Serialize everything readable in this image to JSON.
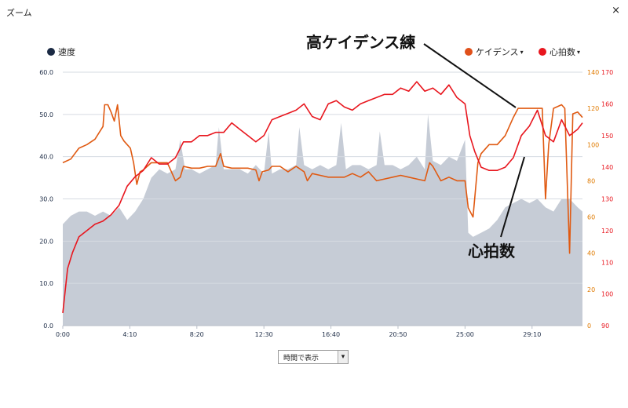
{
  "window": {
    "title": "ズーム",
    "close_symbol": "×"
  },
  "annotations": {
    "cadence_note": "高ケイデンス練",
    "hr_note": "心拍数"
  },
  "legend": {
    "speed": {
      "label": "速度",
      "color": "#1b2a44"
    },
    "cadence": {
      "label": "ケイデンス",
      "color": "#e0501a"
    },
    "heart_rate": {
      "label": "心拍数",
      "color": "#e8161e"
    }
  },
  "controls": {
    "time_select": "時間で表示"
  },
  "chart_data": {
    "type": "line",
    "x_tick_labels": [
      "0:00",
      "4:10",
      "8:20",
      "12:30",
      "16:40",
      "20:50",
      "25:00",
      "29:10"
    ],
    "x_ticks_minutes": [
      0,
      4.1667,
      8.3333,
      12.5,
      16.6667,
      20.8333,
      25,
      29.1667
    ],
    "xlim": [
      0,
      32.3
    ],
    "axes": {
      "speed": {
        "ticks": [
          "0.0",
          "10.0",
          "20.0",
          "30.0",
          "40.0",
          "50.0",
          "60.0"
        ],
        "ylim": [
          0,
          60
        ],
        "color": "#1b2a44"
      },
      "cadence": {
        "ticks": [
          "0",
          "20",
          "40",
          "60",
          "80",
          "100",
          "120",
          "140"
        ],
        "ylim": [
          0,
          140
        ],
        "color": "#e07a00"
      },
      "heart_rate": {
        "ticks": [
          "90",
          "100",
          "110",
          "120",
          "130",
          "140",
          "150",
          "160",
          "170"
        ],
        "ylim": [
          90,
          170
        ],
        "color": "#e8161e"
      }
    },
    "series": [
      {
        "name": "速度",
        "axis": "speed",
        "style": "area",
        "color": "#c6ccd6",
        "x": [
          0,
          0.5,
          1,
          1.5,
          2,
          2.5,
          3,
          3.5,
          4,
          4.5,
          5,
          5.5,
          6,
          6.5,
          7,
          7.3,
          7.6,
          8,
          8.5,
          9,
          9.5,
          9.7,
          10,
          10.5,
          11,
          11.5,
          12,
          12.5,
          12.8,
          13,
          13.5,
          14,
          14.5,
          14.7,
          15,
          15.5,
          16,
          16.5,
          17,
          17.3,
          17.6,
          18,
          18.5,
          19,
          19.5,
          19.7,
          20,
          20.5,
          21,
          21.5,
          22,
          22.5,
          22.7,
          23,
          23.5,
          24,
          24.5,
          25,
          25.2,
          25.5,
          26,
          26.5,
          27,
          27.5,
          28,
          28.5,
          29,
          29.5,
          30,
          30.5,
          31,
          31.5,
          32,
          32.3
        ],
        "y": [
          24,
          26,
          27,
          27,
          26,
          27,
          26,
          28,
          25,
          27,
          30,
          35,
          37,
          36,
          37,
          44,
          37,
          37,
          36,
          37,
          38,
          47,
          37,
          37,
          37,
          36,
          38,
          36,
          46,
          36,
          37,
          37,
          38,
          47,
          38,
          37,
          38,
          37,
          38,
          48,
          37,
          38,
          38,
          37,
          38,
          46,
          38,
          38,
          37,
          38,
          40,
          37,
          50,
          39,
          38,
          40,
          39,
          44,
          22,
          21,
          22,
          23,
          25,
          28,
          29,
          30,
          29,
          30,
          28,
          27,
          30,
          30,
          28,
          27
        ]
      },
      {
        "name": "ケイデンス",
        "axis": "cadence",
        "style": "line",
        "color": "#e05a12",
        "x": [
          0,
          0.5,
          1,
          1.5,
          2,
          2.5,
          2.6,
          2.8,
          3,
          3.2,
          3.4,
          3.6,
          3.8,
          4,
          4.2,
          4.4,
          4.6,
          4.8,
          5,
          5.5,
          6,
          6.5,
          7,
          7.3,
          7.5,
          8,
          8.5,
          9,
          9.5,
          9.8,
          10,
          10.5,
          11,
          11.5,
          12,
          12.2,
          12.4,
          12.8,
          13,
          13.5,
          14,
          14.5,
          15,
          15.2,
          15.5,
          16,
          16.5,
          17,
          17.5,
          18,
          18.5,
          19,
          19.5,
          20,
          20.5,
          21,
          21.5,
          22,
          22.5,
          22.8,
          23,
          23.5,
          24,
          24.5,
          25,
          25.2,
          25.5,
          25.8,
          26,
          26.5,
          27,
          27.5,
          28,
          28.3,
          28.6,
          29,
          29.5,
          29.8,
          30,
          30.2,
          30.5,
          31,
          31.2,
          31.5,
          31.7,
          32,
          32.3
        ],
        "y": [
          90,
          92,
          98,
          100,
          103,
          110,
          122,
          122,
          118,
          113,
          122,
          105,
          102,
          100,
          98,
          90,
          78,
          85,
          86,
          90,
          90,
          90,
          80,
          82,
          88,
          87,
          87,
          88,
          88,
          95,
          88,
          87,
          87,
          87,
          86,
          80,
          85,
          86,
          88,
          88,
          85,
          88,
          85,
          80,
          84,
          83,
          82,
          82,
          82,
          84,
          82,
          85,
          80,
          81,
          82,
          83,
          82,
          81,
          80,
          90,
          88,
          80,
          82,
          80,
          80,
          65,
          60,
          90,
          95,
          100,
          100,
          105,
          115,
          120,
          120,
          120,
          120,
          120,
          70,
          100,
          120,
          122,
          120,
          40,
          117,
          118,
          115
        ]
      },
      {
        "name": "心拍数",
        "axis": "heart_rate",
        "style": "line",
        "color": "#e8161e",
        "x": [
          0,
          0.3,
          0.6,
          1,
          1.5,
          2,
          2.5,
          3,
          3.5,
          4,
          4.5,
          5,
          5.5,
          6,
          6.5,
          7,
          7.5,
          8,
          8.5,
          9,
          9.5,
          10,
          10.5,
          11,
          11.5,
          12,
          12.5,
          13,
          13.5,
          14,
          14.5,
          15,
          15.5,
          16,
          16.5,
          17,
          17.5,
          18,
          18.5,
          19,
          19.5,
          20,
          20.5,
          21,
          21.5,
          22,
          22.5,
          23,
          23.5,
          24,
          24.5,
          25,
          25.3,
          25.6,
          26,
          26.5,
          27,
          27.5,
          28,
          28.5,
          29,
          29.5,
          30,
          30.5,
          31,
          31.5,
          32,
          32.3
        ],
        "y": [
          94,
          108,
          113,
          118,
          120,
          122,
          123,
          125,
          128,
          134,
          137,
          139,
          143,
          141,
          141,
          143,
          148,
          148,
          150,
          150,
          151,
          151,
          154,
          152,
          150,
          148,
          150,
          155,
          156,
          157,
          158,
          160,
          156,
          155,
          160,
          161,
          159,
          158,
          160,
          161,
          162,
          163,
          163,
          165,
          164,
          167,
          164,
          165,
          163,
          166,
          162,
          160,
          150,
          145,
          140,
          139,
          139,
          140,
          143,
          150,
          153,
          158,
          150,
          148,
          155,
          150,
          152,
          154
        ]
      }
    ]
  }
}
